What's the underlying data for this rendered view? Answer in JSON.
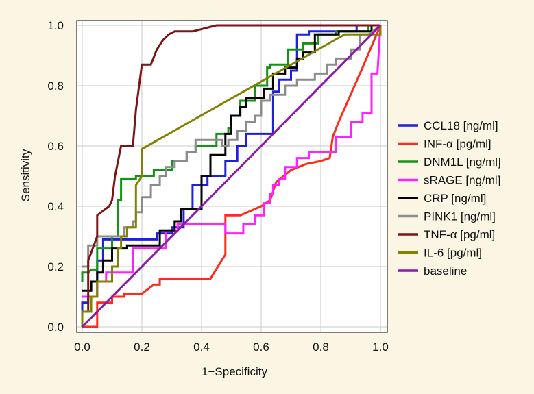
{
  "chart_data": {
    "type": "line",
    "title": "",
    "xlabel": "1−Specificity",
    "ylabel": "Sensitivity",
    "xlim": [
      0,
      1
    ],
    "ylim": [
      0,
      1
    ],
    "x_ticks": [
      "0.0",
      "0.2",
      "0.4",
      "0.6",
      "0.8",
      "1.0"
    ],
    "y_ticks": [
      "0.0",
      "0.2",
      "0.4",
      "0.6",
      "0.8",
      "1.0"
    ],
    "grid": true,
    "legend_position": "right",
    "series": [
      {
        "name": "CCL18 [ng/ml]",
        "color": "#1f1fe0",
        "points": [
          [
            0,
            0
          ],
          [
            0,
            0.08
          ],
          [
            0.02,
            0.08
          ],
          [
            0.02,
            0.1
          ],
          [
            0.05,
            0.1
          ],
          [
            0.05,
            0.22
          ],
          [
            0.07,
            0.22
          ],
          [
            0.07,
            0.29
          ],
          [
            0.25,
            0.29
          ],
          [
            0.25,
            0.31
          ],
          [
            0.3,
            0.31
          ],
          [
            0.3,
            0.33
          ],
          [
            0.34,
            0.33
          ],
          [
            0.34,
            0.39
          ],
          [
            0.37,
            0.39
          ],
          [
            0.37,
            0.47
          ],
          [
            0.42,
            0.47
          ],
          [
            0.42,
            0.5
          ],
          [
            0.48,
            0.5
          ],
          [
            0.48,
            0.55
          ],
          [
            0.52,
            0.55
          ],
          [
            0.52,
            0.6
          ],
          [
            0.55,
            0.6
          ],
          [
            0.55,
            0.64
          ],
          [
            0.64,
            0.64
          ],
          [
            0.64,
            0.78
          ],
          [
            0.66,
            0.78
          ],
          [
            0.66,
            0.82
          ],
          [
            0.7,
            0.82
          ],
          [
            0.7,
            0.85
          ],
          [
            0.72,
            0.85
          ],
          [
            0.72,
            0.97
          ],
          [
            0.76,
            0.97
          ],
          [
            0.76,
            0.98
          ],
          [
            0.92,
            0.98
          ],
          [
            0.92,
            1.0
          ],
          [
            1.0,
            1.0
          ]
        ]
      },
      {
        "name": "INF-α [pg/ml]",
        "color": "#ff2a1a",
        "points": [
          [
            0,
            0
          ],
          [
            0.05,
            0
          ],
          [
            0.05,
            0.08
          ],
          [
            0.1,
            0.08
          ],
          [
            0.1,
            0.1
          ],
          [
            0.14,
            0.1
          ],
          [
            0.14,
            0.11
          ],
          [
            0.2,
            0.11
          ],
          [
            0.24,
            0.14
          ],
          [
            0.26,
            0.14
          ],
          [
            0.26,
            0.16
          ],
          [
            0.43,
            0.16
          ],
          [
            0.48,
            0.24
          ],
          [
            0.48,
            0.37
          ],
          [
            0.53,
            0.37
          ],
          [
            0.6,
            0.4
          ],
          [
            0.63,
            0.42
          ],
          [
            0.65,
            0.48
          ],
          [
            0.7,
            0.52
          ],
          [
            0.75,
            0.54
          ],
          [
            0.8,
            0.55
          ],
          [
            0.83,
            0.56
          ],
          [
            0.84,
            0.63
          ],
          [
            0.86,
            0.68
          ],
          [
            0.9,
            0.77
          ],
          [
            0.94,
            0.86
          ],
          [
            1.0,
            1.0
          ]
        ]
      },
      {
        "name": "DNM1L [ng/ml]",
        "color": "#169216",
        "points": [
          [
            0,
            0.15
          ],
          [
            0,
            0.18
          ],
          [
            0.02,
            0.18
          ],
          [
            0.03,
            0.19
          ],
          [
            0.05,
            0.19
          ],
          [
            0.05,
            0.26
          ],
          [
            0.1,
            0.26
          ],
          [
            0.1,
            0.3
          ],
          [
            0.12,
            0.3
          ],
          [
            0.12,
            0.42
          ],
          [
            0.13,
            0.42
          ],
          [
            0.13,
            0.49
          ],
          [
            0.18,
            0.49
          ],
          [
            0.18,
            0.5
          ],
          [
            0.24,
            0.5
          ],
          [
            0.24,
            0.52
          ],
          [
            0.3,
            0.52
          ],
          [
            0.3,
            0.55
          ],
          [
            0.35,
            0.55
          ],
          [
            0.35,
            0.58
          ],
          [
            0.38,
            0.58
          ],
          [
            0.38,
            0.6
          ],
          [
            0.45,
            0.6
          ],
          [
            0.45,
            0.64
          ],
          [
            0.49,
            0.64
          ],
          [
            0.49,
            0.66
          ],
          [
            0.5,
            0.66
          ],
          [
            0.5,
            0.7
          ],
          [
            0.53,
            0.7
          ],
          [
            0.53,
            0.75
          ],
          [
            0.58,
            0.75
          ],
          [
            0.58,
            0.8
          ],
          [
            0.62,
            0.8
          ],
          [
            0.62,
            0.86
          ],
          [
            0.63,
            0.86
          ],
          [
            0.63,
            0.87
          ],
          [
            0.69,
            0.87
          ],
          [
            0.69,
            0.92
          ],
          [
            0.74,
            0.92
          ],
          [
            0.74,
            0.94
          ],
          [
            0.79,
            0.94
          ],
          [
            0.79,
            0.97
          ],
          [
            0.85,
            0.97
          ],
          [
            0.85,
            0.98
          ],
          [
            0.96,
            0.98
          ],
          [
            0.96,
            1.0
          ],
          [
            1.0,
            1.0
          ]
        ]
      },
      {
        "name": "sRAGE [ng/ml]",
        "color": "#ff22ff",
        "points": [
          [
            0,
            0.1
          ],
          [
            0.05,
            0.1
          ],
          [
            0.05,
            0.15
          ],
          [
            0.08,
            0.15
          ],
          [
            0.08,
            0.18
          ],
          [
            0.17,
            0.18
          ],
          [
            0.17,
            0.26
          ],
          [
            0.28,
            0.26
          ],
          [
            0.28,
            0.32
          ],
          [
            0.32,
            0.32
          ],
          [
            0.32,
            0.34
          ],
          [
            0.48,
            0.34
          ],
          [
            0.48,
            0.31
          ],
          [
            0.54,
            0.31
          ],
          [
            0.54,
            0.34
          ],
          [
            0.58,
            0.34
          ],
          [
            0.58,
            0.37
          ],
          [
            0.61,
            0.37
          ],
          [
            0.61,
            0.41
          ],
          [
            0.63,
            0.41
          ],
          [
            0.63,
            0.44
          ],
          [
            0.64,
            0.44
          ],
          [
            0.64,
            0.47
          ],
          [
            0.66,
            0.47
          ],
          [
            0.66,
            0.49
          ],
          [
            0.68,
            0.49
          ],
          [
            0.68,
            0.53
          ],
          [
            0.72,
            0.53
          ],
          [
            0.72,
            0.56
          ],
          [
            0.76,
            0.56
          ],
          [
            0.76,
            0.58
          ],
          [
            0.85,
            0.58
          ],
          [
            0.85,
            0.63
          ],
          [
            0.9,
            0.63
          ],
          [
            0.9,
            0.68
          ],
          [
            0.94,
            0.68
          ],
          [
            0.94,
            0.71
          ],
          [
            0.97,
            0.71
          ],
          [
            0.97,
            0.84
          ],
          [
            0.99,
            0.84
          ],
          [
            1.0,
            1.0
          ]
        ]
      },
      {
        "name": "CRP [ng/ml]",
        "color": "#000000",
        "points": [
          [
            0,
            0.12
          ],
          [
            0.03,
            0.12
          ],
          [
            0.03,
            0.15
          ],
          [
            0.05,
            0.15
          ],
          [
            0.05,
            0.18
          ],
          [
            0.07,
            0.18
          ],
          [
            0.07,
            0.22
          ],
          [
            0.1,
            0.22
          ],
          [
            0.1,
            0.26
          ],
          [
            0.15,
            0.26
          ],
          [
            0.15,
            0.27
          ],
          [
            0.26,
            0.27
          ],
          [
            0.26,
            0.32
          ],
          [
            0.31,
            0.32
          ],
          [
            0.31,
            0.35
          ],
          [
            0.33,
            0.35
          ],
          [
            0.33,
            0.39
          ],
          [
            0.4,
            0.39
          ],
          [
            0.4,
            0.5
          ],
          [
            0.43,
            0.5
          ],
          [
            0.43,
            0.57
          ],
          [
            0.48,
            0.57
          ],
          [
            0.48,
            0.64
          ],
          [
            0.5,
            0.64
          ],
          [
            0.5,
            0.7
          ],
          [
            0.53,
            0.7
          ],
          [
            0.53,
            0.73
          ],
          [
            0.55,
            0.73
          ],
          [
            0.55,
            0.76
          ],
          [
            0.61,
            0.76
          ],
          [
            0.61,
            0.79
          ],
          [
            0.64,
            0.79
          ],
          [
            0.64,
            0.84
          ],
          [
            0.68,
            0.84
          ],
          [
            0.68,
            0.86
          ],
          [
            0.72,
            0.86
          ],
          [
            0.72,
            0.89
          ],
          [
            0.74,
            0.89
          ],
          [
            0.74,
            0.91
          ],
          [
            0.78,
            0.91
          ],
          [
            0.78,
            0.97
          ],
          [
            0.86,
            0.97
          ],
          [
            0.86,
            0.98
          ],
          [
            0.97,
            0.98
          ],
          [
            0.97,
            1.0
          ],
          [
            1.0,
            1.0
          ]
        ]
      },
      {
        "name": "PINK1 [ng/ml]",
        "color": "#8c8c8c",
        "points": [
          [
            0,
            0.2
          ],
          [
            0.02,
            0.2
          ],
          [
            0.02,
            0.27
          ],
          [
            0.05,
            0.27
          ],
          [
            0.05,
            0.3
          ],
          [
            0.14,
            0.3
          ],
          [
            0.14,
            0.33
          ],
          [
            0.17,
            0.33
          ],
          [
            0.17,
            0.35
          ],
          [
            0.18,
            0.35
          ],
          [
            0.18,
            0.38
          ],
          [
            0.2,
            0.38
          ],
          [
            0.2,
            0.43
          ],
          [
            0.23,
            0.43
          ],
          [
            0.23,
            0.47
          ],
          [
            0.26,
            0.47
          ],
          [
            0.26,
            0.5
          ],
          [
            0.28,
            0.5
          ],
          [
            0.28,
            0.53
          ],
          [
            0.31,
            0.53
          ],
          [
            0.31,
            0.55
          ],
          [
            0.35,
            0.55
          ],
          [
            0.35,
            0.58
          ],
          [
            0.38,
            0.58
          ],
          [
            0.38,
            0.62
          ],
          [
            0.47,
            0.62
          ],
          [
            0.47,
            0.6
          ],
          [
            0.49,
            0.6
          ],
          [
            0.49,
            0.62
          ],
          [
            0.52,
            0.62
          ],
          [
            0.52,
            0.65
          ],
          [
            0.55,
            0.65
          ],
          [
            0.55,
            0.68
          ],
          [
            0.58,
            0.68
          ],
          [
            0.58,
            0.7
          ],
          [
            0.6,
            0.7
          ],
          [
            0.6,
            0.75
          ],
          [
            0.63,
            0.75
          ],
          [
            0.63,
            0.77
          ],
          [
            0.68,
            0.77
          ],
          [
            0.68,
            0.8
          ],
          [
            0.72,
            0.8
          ],
          [
            0.72,
            0.82
          ],
          [
            0.78,
            0.82
          ],
          [
            0.78,
            0.84
          ],
          [
            0.82,
            0.84
          ],
          [
            0.82,
            0.87
          ],
          [
            0.85,
            0.87
          ],
          [
            0.85,
            0.89
          ],
          [
            0.9,
            0.89
          ],
          [
            0.9,
            0.92
          ],
          [
            0.93,
            0.92
          ],
          [
            0.93,
            0.97
          ],
          [
            0.96,
            0.97
          ],
          [
            1.0,
            1.0
          ]
        ]
      },
      {
        "name": "TNF-α [pg/ml]",
        "color": "#7a1616",
        "points": [
          [
            0,
            0.05
          ],
          [
            0.02,
            0.05
          ],
          [
            0.02,
            0.22
          ],
          [
            0.05,
            0.3
          ],
          [
            0.05,
            0.37
          ],
          [
            0.09,
            0.4
          ],
          [
            0.1,
            0.42
          ],
          [
            0.11,
            0.5
          ],
          [
            0.12,
            0.55
          ],
          [
            0.13,
            0.6
          ],
          [
            0.17,
            0.6
          ],
          [
            0.18,
            0.72
          ],
          [
            0.2,
            0.87
          ],
          [
            0.23,
            0.87
          ],
          [
            0.25,
            0.92
          ],
          [
            0.27,
            0.95
          ],
          [
            0.29,
            0.97
          ],
          [
            0.31,
            0.98
          ],
          [
            0.37,
            0.98
          ],
          [
            0.45,
            1.0
          ],
          [
            1.0,
            1.0
          ]
        ]
      },
      {
        "name": "IL-6 [pg/ml]",
        "color": "#828200",
        "points": [
          [
            0,
            0.0
          ],
          [
            0,
            0.05
          ],
          [
            0.03,
            0.05
          ],
          [
            0.03,
            0.1
          ],
          [
            0.05,
            0.1
          ],
          [
            0.05,
            0.15
          ],
          [
            0.1,
            0.15
          ],
          [
            0.1,
            0.2
          ],
          [
            0.12,
            0.2
          ],
          [
            0.12,
            0.26
          ],
          [
            0.13,
            0.26
          ],
          [
            0.13,
            0.3
          ],
          [
            0.15,
            0.3
          ],
          [
            0.15,
            0.33
          ],
          [
            0.18,
            0.33
          ],
          [
            0.18,
            0.47
          ],
          [
            0.2,
            0.5
          ],
          [
            0.2,
            0.59
          ],
          [
            0.88,
            0.97
          ],
          [
            1.0,
            0.97
          ],
          [
            1.0,
            1.0
          ]
        ]
      },
      {
        "name": "baseline",
        "color": "#8b18a8",
        "points": [
          [
            0,
            0
          ],
          [
            1,
            1
          ]
        ]
      }
    ]
  }
}
